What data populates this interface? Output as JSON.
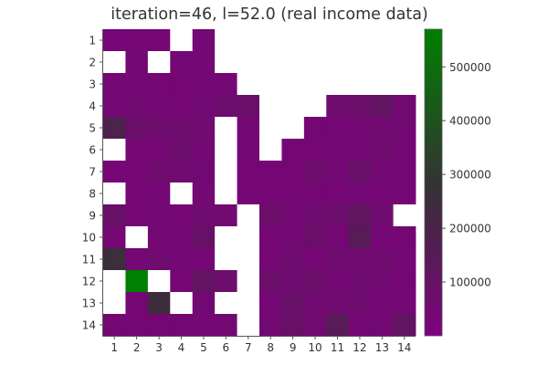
{
  "chart_data": {
    "type": "heatmap",
    "title": "iteration=46, l=52.0 (real income data)",
    "xlabel": "",
    "ylabel": "",
    "x_ticks": [
      "1",
      "2",
      "3",
      "4",
      "5",
      "6",
      "7",
      "8",
      "9",
      "10",
      "11",
      "12",
      "13",
      "14"
    ],
    "y_ticks": [
      "1",
      "2",
      "3",
      "4",
      "5",
      "6",
      "7",
      "8",
      "9",
      "10",
      "11",
      "12",
      "13",
      "14"
    ],
    "colorbar": {
      "range": [
        0,
        570000
      ],
      "ticks": [
        100000,
        200000,
        300000,
        400000,
        500000
      ],
      "tick_labels": [
        "100000",
        "200000",
        "300000",
        "400000",
        "500000"
      ],
      "colors": [
        "#800080",
        "#333333",
        "#008000"
      ],
      "stops": [
        0,
        0.5,
        1
      ]
    },
    "missing_color": "#ffffff",
    "values": [
      [
        35000,
        40000,
        40000,
        null,
        45000,
        null,
        null,
        null,
        null,
        null,
        null,
        null,
        null,
        null
      ],
      [
        null,
        50000,
        null,
        45000,
        45000,
        null,
        null,
        null,
        null,
        null,
        null,
        null,
        null,
        null
      ],
      [
        40000,
        45000,
        40000,
        40000,
        45000,
        40000,
        null,
        null,
        null,
        null,
        null,
        null,
        null,
        null
      ],
      [
        45000,
        55000,
        45000,
        40000,
        50000,
        70000,
        80000,
        null,
        null,
        null,
        60000,
        80000,
        110000,
        50000
      ],
      [
        190000,
        80000,
        65000,
        60000,
        55000,
        null,
        40000,
        null,
        null,
        40000,
        40000,
        45000,
        55000,
        50000
      ],
      [
        null,
        40000,
        40000,
        70000,
        45000,
        null,
        45000,
        null,
        40000,
        40000,
        45000,
        45000,
        60000,
        40000
      ],
      [
        35000,
        40000,
        60000,
        55000,
        50000,
        null,
        40000,
        40000,
        40000,
        65000,
        45000,
        90000,
        45000,
        40000
      ],
      [
        null,
        40000,
        40000,
        null,
        45000,
        null,
        40000,
        40000,
        40000,
        40000,
        40000,
        45000,
        40000,
        40000
      ],
      [
        90000,
        40000,
        45000,
        40000,
        60000,
        55000,
        null,
        80000,
        45000,
        60000,
        70000,
        120000,
        60000,
        null
      ],
      [
        40000,
        null,
        45000,
        45000,
        90000,
        null,
        null,
        40000,
        50000,
        80000,
        40000,
        150000,
        40000,
        40000
      ],
      [
        260000,
        45000,
        60000,
        45000,
        40000,
        null,
        null,
        40000,
        60000,
        40000,
        60000,
        55000,
        60000,
        45000
      ],
      [
        null,
        570000,
        null,
        40000,
        110000,
        70000,
        null,
        80000,
        60000,
        80000,
        45000,
        60000,
        55000,
        40000
      ],
      [
        null,
        40000,
        250000,
        null,
        50000,
        null,
        null,
        40000,
        90000,
        55000,
        60000,
        60000,
        45000,
        45000
      ],
      [
        40000,
        40000,
        40000,
        40000,
        45000,
        50000,
        null,
        50000,
        90000,
        50000,
        150000,
        40000,
        50000,
        110000
      ]
    ]
  }
}
